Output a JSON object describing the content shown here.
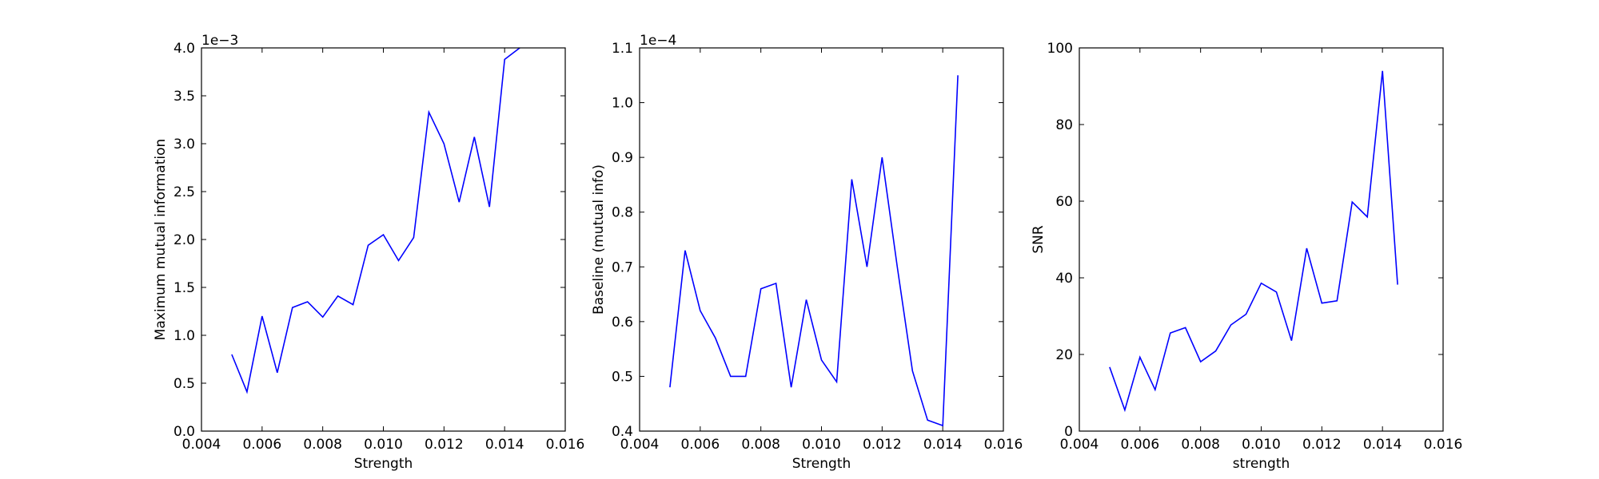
{
  "chart_data": [
    {
      "type": "line",
      "xlabel": "Strength",
      "ylabel": "Maximum mutual information",
      "offset_label": "1e−3",
      "xlim": [
        0.004,
        0.016
      ],
      "ylim": [
        0.0,
        4.0
      ],
      "xticks": [
        "0.004",
        "0.006",
        "0.008",
        "0.010",
        "0.012",
        "0.014",
        "0.016"
      ],
      "yticks": [
        "0.0",
        "0.5",
        "1.0",
        "1.5",
        "2.0",
        "2.5",
        "3.0",
        "3.5",
        "4.0"
      ],
      "line_color": "#0000ff",
      "x": [
        0.005,
        0.0055,
        0.006,
        0.0065,
        0.007,
        0.0075,
        0.008,
        0.0085,
        0.009,
        0.0095,
        0.01,
        0.0105,
        0.011,
        0.0115,
        0.012,
        0.0125,
        0.013,
        0.0135,
        0.014,
        0.0145
      ],
      "y": [
        0.8,
        0.41,
        1.2,
        0.61,
        1.29,
        1.35,
        1.19,
        1.41,
        1.32,
        1.94,
        2.05,
        1.78,
        2.02,
        3.33,
        3.0,
        2.39,
        3.07,
        2.34,
        3.88,
        4.0
      ]
    },
    {
      "type": "line",
      "xlabel": "Strength",
      "ylabel": "Baseline (mutual info)",
      "offset_label": "1e−4",
      "xlim": [
        0.004,
        0.016
      ],
      "ylim": [
        0.4,
        1.1
      ],
      "xticks": [
        "0.004",
        "0.006",
        "0.008",
        "0.010",
        "0.012",
        "0.014",
        "0.016"
      ],
      "yticks": [
        "0.4",
        "0.5",
        "0.6",
        "0.7",
        "0.8",
        "0.9",
        "1.0",
        "1.1"
      ],
      "line_color": "#0000ff",
      "x": [
        0.005,
        0.0055,
        0.006,
        0.0065,
        0.007,
        0.0075,
        0.008,
        0.0085,
        0.009,
        0.0095,
        0.01,
        0.0105,
        0.011,
        0.0115,
        0.012,
        0.0125,
        0.013,
        0.0135,
        0.014,
        0.0145
      ],
      "y": [
        0.48,
        0.73,
        0.62,
        0.57,
        0.5,
        0.5,
        0.66,
        0.67,
        0.48,
        0.64,
        0.53,
        0.49,
        0.86,
        0.7,
        0.9,
        0.7,
        0.51,
        0.42,
        0.41,
        1.05
      ]
    },
    {
      "type": "line",
      "xlabel": "strength",
      "ylabel": "SNR",
      "offset_label": "",
      "xlim": [
        0.004,
        0.016
      ],
      "ylim": [
        0,
        100
      ],
      "xticks": [
        "0.004",
        "0.006",
        "0.008",
        "0.010",
        "0.012",
        "0.014",
        "0.016"
      ],
      "yticks": [
        "0",
        "20",
        "40",
        "60",
        "80",
        "100"
      ],
      "line_color": "#0000ff",
      "x": [
        0.005,
        0.0055,
        0.006,
        0.0065,
        0.007,
        0.0075,
        0.008,
        0.0085,
        0.009,
        0.0095,
        0.01,
        0.0105,
        0.011,
        0.0115,
        0.012,
        0.0125,
        0.013,
        0.0135,
        0.014,
        0.0145
      ],
      "y": [
        16.7,
        5.5,
        19.3,
        10.8,
        25.6,
        27.0,
        18.1,
        20.9,
        27.7,
        30.5,
        38.6,
        36.3,
        23.6,
        47.7,
        33.4,
        34.0,
        59.8,
        55.9,
        94.0,
        38.2
      ]
    }
  ]
}
